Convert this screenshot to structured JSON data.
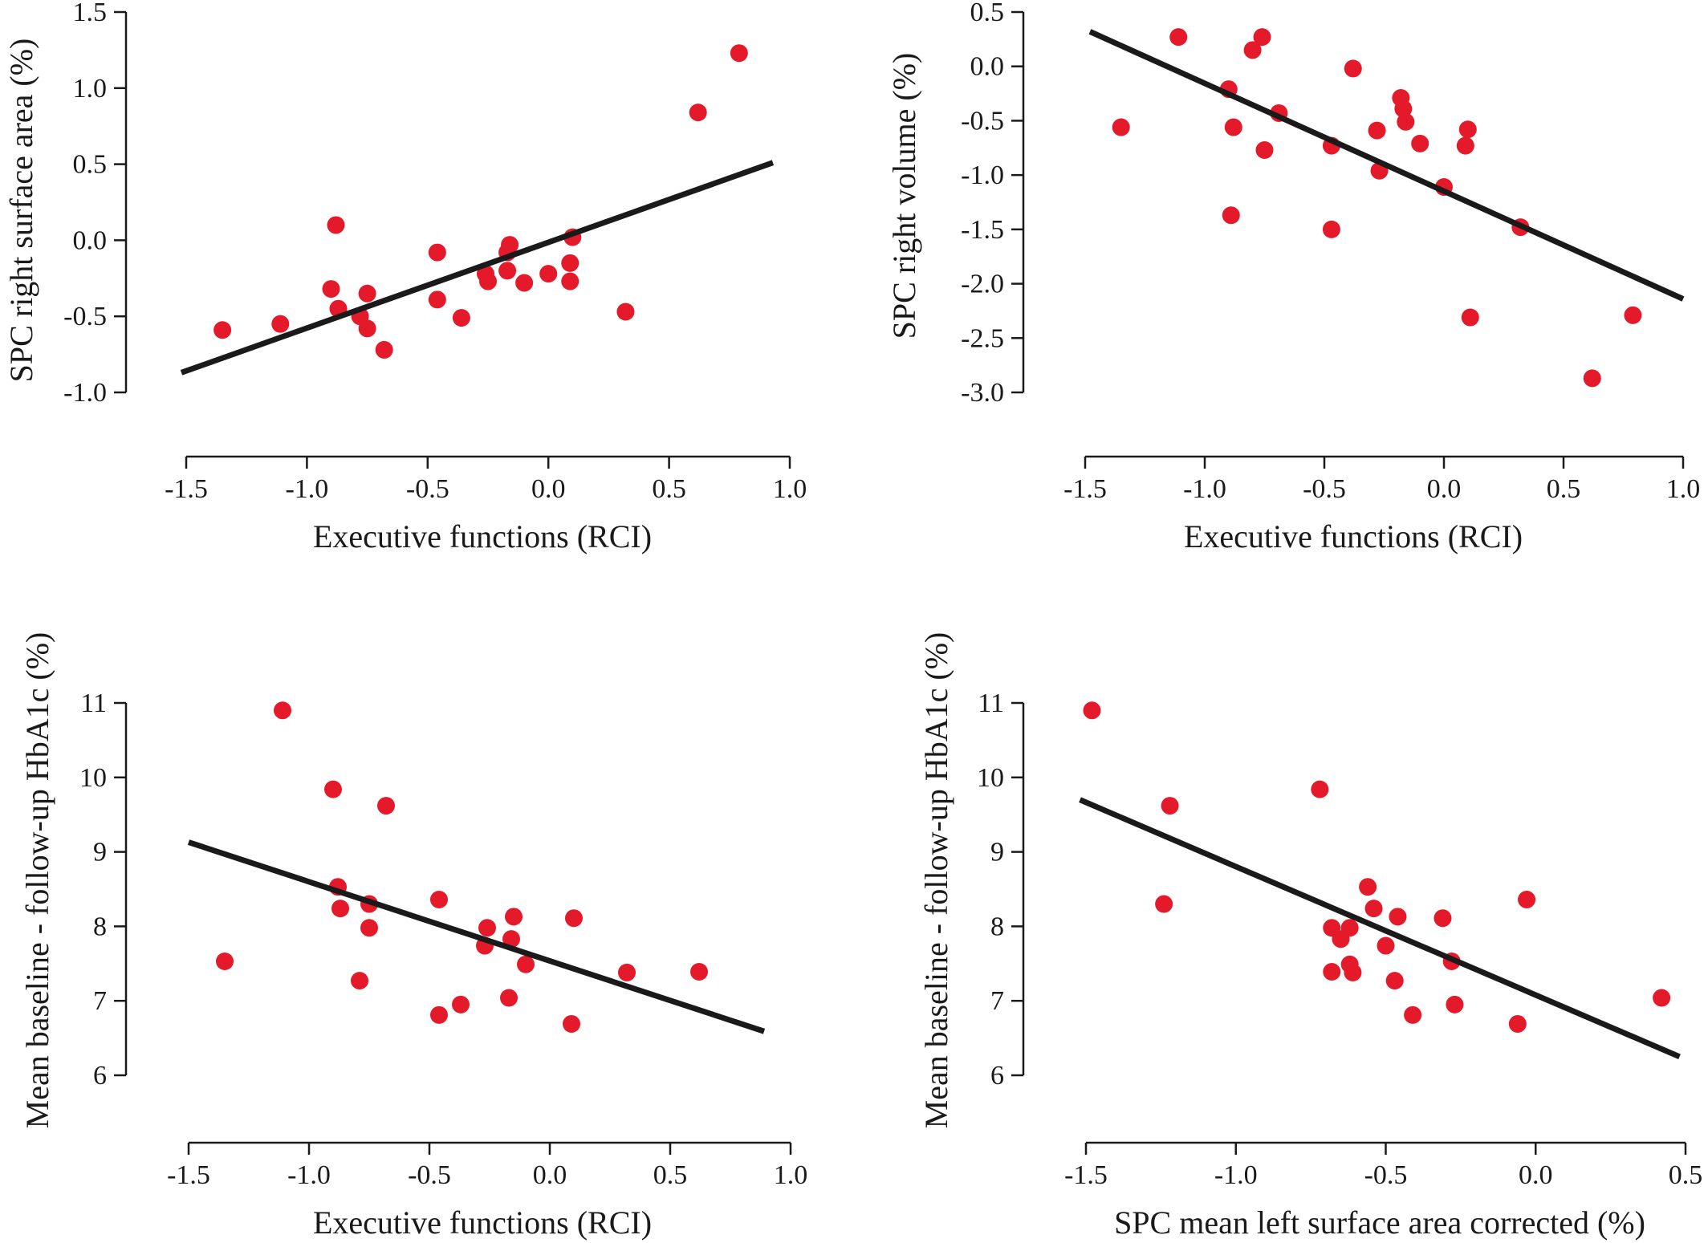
{
  "colors": {
    "point": "#e41a2a",
    "fit_line": "#1a1a1a",
    "axis": "#1a1a1a"
  },
  "chart_data": [
    {
      "type": "scatter",
      "xlabel": "Executive functions (RCI)",
      "ylabel": "SPC right surface area (%)",
      "xlim": [
        -1.5,
        1.0
      ],
      "ylim": [
        -1.0,
        1.5
      ],
      "xticks": [
        -1.5,
        -1.0,
        -0.5,
        0.0,
        0.5,
        1.0
      ],
      "xtick_labels": [
        "-1.5",
        "-1.0",
        "-0.5",
        "0.0",
        "0.5",
        "1.0"
      ],
      "yticks": [
        -1.0,
        -0.5,
        0.0,
        0.5,
        1.0,
        1.5
      ],
      "ytick_labels": [
        "-1.0",
        "-0.5",
        "0.0",
        "0.5",
        "1.0",
        "1.5"
      ],
      "grid": false,
      "points": [
        {
          "x": -1.35,
          "y": -0.59
        },
        {
          "x": -1.11,
          "y": -0.55
        },
        {
          "x": -0.88,
          "y": 0.1
        },
        {
          "x": -0.9,
          "y": -0.32
        },
        {
          "x": -0.87,
          "y": -0.45
        },
        {
          "x": -0.78,
          "y": -0.5
        },
        {
          "x": -0.75,
          "y": -0.35
        },
        {
          "x": -0.75,
          "y": -0.58
        },
        {
          "x": -0.68,
          "y": -0.72
        },
        {
          "x": -0.46,
          "y": -0.08
        },
        {
          "x": -0.46,
          "y": -0.39
        },
        {
          "x": -0.36,
          "y": -0.51
        },
        {
          "x": -0.26,
          "y": -0.22
        },
        {
          "x": -0.25,
          "y": -0.27
        },
        {
          "x": -0.16,
          "y": -0.03
        },
        {
          "x": -0.17,
          "y": -0.08
        },
        {
          "x": -0.17,
          "y": -0.2
        },
        {
          "x": -0.1,
          "y": -0.28
        },
        {
          "x": 0.0,
          "y": -0.22
        },
        {
          "x": 0.1,
          "y": 0.02
        },
        {
          "x": 0.09,
          "y": -0.15
        },
        {
          "x": 0.09,
          "y": -0.27
        },
        {
          "x": 0.32,
          "y": -0.47
        },
        {
          "x": 0.62,
          "y": 0.84
        },
        {
          "x": 0.79,
          "y": 1.23
        }
      ],
      "fit_line": {
        "x": [
          -1.52,
          0.93
        ],
        "y": [
          -0.87,
          0.51
        ]
      }
    },
    {
      "type": "scatter",
      "xlabel": "Executive functions (RCI)",
      "ylabel": "SPC right volume (%)",
      "xlim": [
        -1.5,
        1.0
      ],
      "ylim": [
        -3.0,
        0.5
      ],
      "xticks": [
        -1.5,
        -1.0,
        -0.5,
        0.0,
        0.5,
        1.0
      ],
      "xtick_labels": [
        "-1.5",
        "-1.0",
        "-0.5",
        "0.0",
        "0.5",
        "1.0"
      ],
      "yticks": [
        -3.0,
        -2.5,
        -2.0,
        -1.5,
        -1.0,
        -0.5,
        0.0,
        0.5
      ],
      "ytick_labels": [
        "-3.0",
        "-2.5",
        "-2.0",
        "-1.5",
        "-1.0",
        "-0.5",
        "0.0",
        "0.5"
      ],
      "grid": false,
      "points": [
        {
          "x": -1.35,
          "y": -0.56
        },
        {
          "x": -1.11,
          "y": 0.27
        },
        {
          "x": -0.9,
          "y": -0.21
        },
        {
          "x": -0.88,
          "y": -0.56
        },
        {
          "x": -0.89,
          "y": -1.37
        },
        {
          "x": -0.8,
          "y": 0.15
        },
        {
          "x": -0.76,
          "y": 0.27
        },
        {
          "x": -0.75,
          "y": -0.77
        },
        {
          "x": -0.69,
          "y": -0.43
        },
        {
          "x": -0.47,
          "y": -0.73
        },
        {
          "x": -0.47,
          "y": -1.5
        },
        {
          "x": -0.38,
          "y": -0.02
        },
        {
          "x": -0.28,
          "y": -0.59
        },
        {
          "x": -0.27,
          "y": -0.96
        },
        {
          "x": -0.18,
          "y": -0.29
        },
        {
          "x": -0.17,
          "y": -0.39
        },
        {
          "x": -0.16,
          "y": -0.51
        },
        {
          "x": -0.1,
          "y": -0.71
        },
        {
          "x": 0.0,
          "y": -1.11
        },
        {
          "x": 0.1,
          "y": -0.58
        },
        {
          "x": 0.09,
          "y": -0.73
        },
        {
          "x": 0.11,
          "y": -2.31
        },
        {
          "x": 0.32,
          "y": -1.48
        },
        {
          "x": 0.62,
          "y": -2.87
        },
        {
          "x": 0.79,
          "y": -2.29
        }
      ],
      "fit_line": {
        "x": [
          -1.48,
          1.0
        ],
        "y": [
          0.32,
          -2.14
        ]
      }
    },
    {
      "type": "scatter",
      "xlabel": "Executive functions (RCI)",
      "ylabel": "Mean baseline - follow-up HbA1c (%)",
      "xlim": [
        -1.5,
        1.0
      ],
      "ylim": [
        6,
        11
      ],
      "xticks": [
        -1.5,
        -1.0,
        -0.5,
        0.0,
        0.5,
        1.0
      ],
      "xtick_labels": [
        "-1.5",
        "-1.0",
        "-0.5",
        "0.0",
        "0.5",
        "1.0"
      ],
      "yticks": [
        6,
        7,
        8,
        9,
        10,
        11
      ],
      "ytick_labels": [
        "6",
        "7",
        "8",
        "9",
        "10",
        "11"
      ],
      "grid": false,
      "points": [
        {
          "x": -1.35,
          "y": 7.53
        },
        {
          "x": -1.11,
          "y": 10.9
        },
        {
          "x": -0.9,
          "y": 9.84
        },
        {
          "x": -0.88,
          "y": 8.53
        },
        {
          "x": -0.87,
          "y": 8.24
        },
        {
          "x": -0.79,
          "y": 7.27
        },
        {
          "x": -0.75,
          "y": 8.3
        },
        {
          "x": -0.75,
          "y": 7.98
        },
        {
          "x": -0.68,
          "y": 9.62
        },
        {
          "x": -0.46,
          "y": 8.36
        },
        {
          "x": -0.46,
          "y": 6.81
        },
        {
          "x": -0.37,
          "y": 6.95
        },
        {
          "x": -0.26,
          "y": 7.98
        },
        {
          "x": -0.27,
          "y": 7.74
        },
        {
          "x": -0.15,
          "y": 8.13
        },
        {
          "x": -0.16,
          "y": 7.83
        },
        {
          "x": -0.17,
          "y": 7.04
        },
        {
          "x": -0.1,
          "y": 7.49
        },
        {
          "x": 0.1,
          "y": 8.11
        },
        {
          "x": 0.09,
          "y": 6.69
        },
        {
          "x": 0.32,
          "y": 7.38
        },
        {
          "x": 0.62,
          "y": 7.39
        }
      ],
      "fit_line": {
        "x": [
          -1.5,
          0.89
        ],
        "y": [
          9.13,
          6.59
        ]
      }
    },
    {
      "type": "scatter",
      "xlabel": "SPC mean left surface area corrected (%)",
      "ylabel": "Mean baseline - follow-up HbA1c (%)",
      "xlim": [
        -1.5,
        0.5
      ],
      "ylim": [
        6,
        11
      ],
      "xticks": [
        -1.5,
        -1.0,
        -0.5,
        0.0,
        0.5
      ],
      "xtick_labels": [
        "-1.5",
        "-1.0",
        "-0.5",
        "0.0",
        "0.5"
      ],
      "yticks": [
        6,
        7,
        8,
        9,
        10,
        11
      ],
      "ytick_labels": [
        "6",
        "7",
        "8",
        "9",
        "10",
        "11"
      ],
      "grid": false,
      "points": [
        {
          "x": -1.48,
          "y": 10.9
        },
        {
          "x": -1.24,
          "y": 8.3
        },
        {
          "x": -1.22,
          "y": 9.62
        },
        {
          "x": -0.72,
          "y": 9.84
        },
        {
          "x": -0.68,
          "y": 7.98
        },
        {
          "x": -0.68,
          "y": 7.39
        },
        {
          "x": -0.65,
          "y": 7.83
        },
        {
          "x": -0.62,
          "y": 7.98
        },
        {
          "x": -0.62,
          "y": 7.49
        },
        {
          "x": -0.61,
          "y": 7.38
        },
        {
          "x": -0.56,
          "y": 8.53
        },
        {
          "x": -0.54,
          "y": 8.24
        },
        {
          "x": -0.5,
          "y": 7.74
        },
        {
          "x": -0.47,
          "y": 7.27
        },
        {
          "x": -0.46,
          "y": 8.13
        },
        {
          "x": -0.41,
          "y": 6.81
        },
        {
          "x": -0.31,
          "y": 8.11
        },
        {
          "x": -0.28,
          "y": 7.53
        },
        {
          "x": -0.27,
          "y": 6.95
        },
        {
          "x": -0.06,
          "y": 6.69
        },
        {
          "x": -0.03,
          "y": 8.36
        },
        {
          "x": 0.42,
          "y": 7.04
        }
      ],
      "fit_line": {
        "x": [
          -1.52,
          0.48
        ],
        "y": [
          9.7,
          6.25
        ]
      }
    }
  ]
}
